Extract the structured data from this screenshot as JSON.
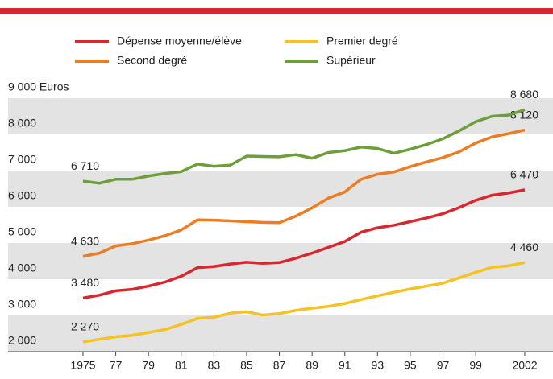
{
  "chart_data": {
    "type": "line",
    "x": [
      1975,
      1976,
      1977,
      1978,
      1979,
      1980,
      1981,
      1982,
      1983,
      1984,
      1985,
      1986,
      1987,
      1988,
      1989,
      1990,
      1991,
      1992,
      1993,
      1994,
      1995,
      1996,
      1997,
      1998,
      1999,
      2000,
      2001,
      2002
    ],
    "xlim": [
      1975,
      2002
    ],
    "xticks": [
      1975,
      {
        "value": 1977,
        "label": "77"
      },
      {
        "value": 1979,
        "label": "79"
      },
      {
        "value": 1981,
        "label": "81"
      },
      {
        "value": 1983,
        "label": "83"
      },
      {
        "value": 1985,
        "label": "85"
      },
      {
        "value": 1987,
        "label": "87"
      },
      {
        "value": 1989,
        "label": "89"
      },
      {
        "value": 1991,
        "label": "91"
      },
      {
        "value": 1993,
        "label": "93"
      },
      {
        "value": 1995,
        "label": "95"
      },
      {
        "value": 1997,
        "label": "97"
      },
      {
        "value": 1999,
        "label": "99"
      },
      2002
    ],
    "ylim": [
      2000,
      9000
    ],
    "yticks": [
      {
        "value": 2000,
        "label": "2 000"
      },
      {
        "value": 3000,
        "label": "3 000"
      },
      {
        "value": 4000,
        "label": "4 000"
      },
      {
        "value": 5000,
        "label": "5 000"
      },
      {
        "value": 6000,
        "label": "6 000"
      },
      {
        "value": 7000,
        "label": "7 000"
      },
      {
        "value": 8000,
        "label": "8 000"
      },
      {
        "value": 9000,
        "label": "9 000 Euros"
      }
    ],
    "grid": "bands",
    "series": [
      {
        "name": "Dépense moyenne/élève",
        "color": "#d7282f",
        "values": [
          3480,
          3560,
          3680,
          3720,
          3810,
          3920,
          4080,
          4320,
          4350,
          4420,
          4470,
          4440,
          4460,
          4580,
          4720,
          4880,
          5040,
          5300,
          5420,
          5490,
          5590,
          5690,
          5810,
          5980,
          6180,
          6320,
          6380,
          6470
        ],
        "value_labels": [
          "3 480",
          null,
          null,
          null,
          null,
          null,
          null,
          null,
          null,
          null,
          null,
          null,
          null,
          null,
          null,
          null,
          null,
          null,
          null,
          null,
          null,
          null,
          null,
          null,
          null,
          null,
          null,
          "6 470"
        ]
      },
      {
        "name": "Premier degré",
        "color": "#f6c223",
        "values": [
          2270,
          2340,
          2410,
          2450,
          2530,
          2610,
          2750,
          2920,
          2950,
          3060,
          3100,
          3010,
          3050,
          3140,
          3200,
          3250,
          3330,
          3440,
          3540,
          3640,
          3730,
          3810,
          3890,
          4040,
          4190,
          4330,
          4370,
          4460
        ],
        "value_labels": [
          "2 270",
          null,
          null,
          null,
          null,
          null,
          null,
          null,
          null,
          null,
          null,
          null,
          null,
          null,
          null,
          null,
          null,
          null,
          null,
          null,
          null,
          null,
          null,
          null,
          null,
          null,
          null,
          "4 460"
        ]
      },
      {
        "name": "Second degré",
        "color": "#ed7d23",
        "values": [
          4630,
          4720,
          4920,
          4980,
          5080,
          5200,
          5360,
          5640,
          5630,
          5610,
          5590,
          5570,
          5560,
          5740,
          5970,
          6240,
          6410,
          6760,
          6900,
          6960,
          7110,
          7240,
          7360,
          7520,
          7760,
          7930,
          8020,
          8120
        ],
        "value_labels": [
          "4 630",
          null,
          null,
          null,
          null,
          null,
          null,
          null,
          null,
          null,
          null,
          null,
          null,
          null,
          null,
          null,
          null,
          null,
          null,
          null,
          null,
          null,
          null,
          null,
          null,
          null,
          null,
          "8 120"
        ]
      },
      {
        "name": "Supérieur",
        "color": "#6d9e3a",
        "values": [
          6710,
          6650,
          6760,
          6760,
          6850,
          6920,
          6970,
          7180,
          7120,
          7150,
          7400,
          7390,
          7380,
          7440,
          7340,
          7500,
          7550,
          7650,
          7610,
          7480,
          7590,
          7720,
          7880,
          8100,
          8350,
          8500,
          8530,
          8680
        ],
        "value_labels": [
          "6 710",
          null,
          null,
          null,
          null,
          null,
          null,
          null,
          null,
          null,
          null,
          null,
          null,
          null,
          null,
          null,
          null,
          null,
          null,
          null,
          null,
          null,
          null,
          null,
          null,
          null,
          null,
          "8 680"
        ]
      }
    ]
  }
}
